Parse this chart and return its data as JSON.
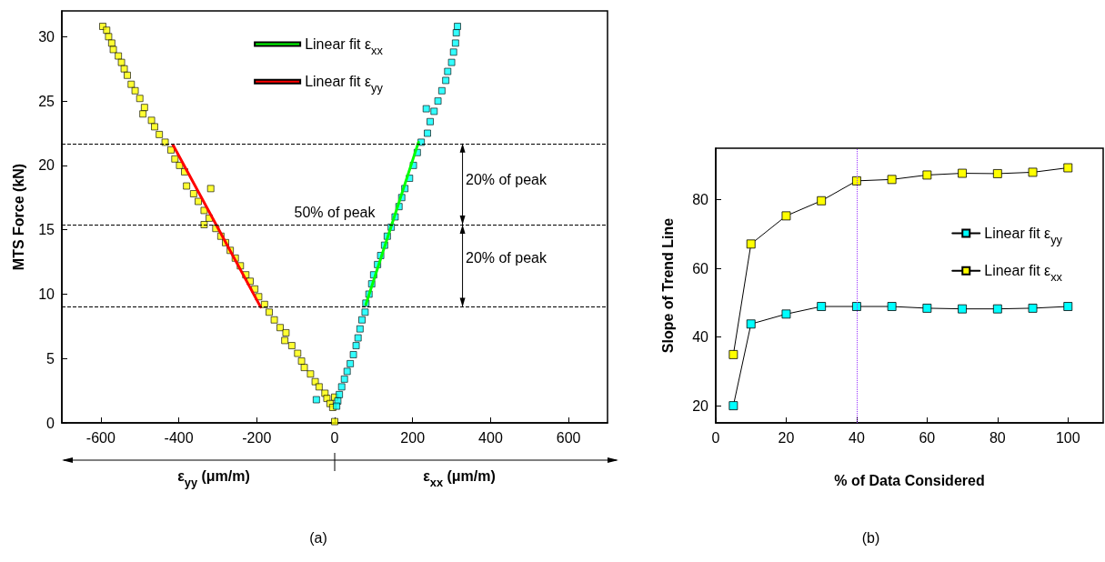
{
  "chart_data": [
    {
      "type": "scatter",
      "title": "(a)",
      "xlabel": "ε$_{yy}$ (μm/m)",
      "ylabel": "MTS Force (kN)",
      "xlim": [
        -700,
        700
      ],
      "xticks": [
        -600,
        -400,
        -200,
        0,
        200,
        400,
        600
      ],
      "ylim": [
        0,
        32
      ],
      "yticks": [
        0,
        5,
        10,
        15,
        20,
        25,
        30
      ],
      "marker": "square",
      "grid": false,
      "legend": "top",
      "series": [
        {
          "color": "#ffff00",
          "x": [
            -595,
            -585,
            -580,
            -572,
            -568,
            -555,
            -547,
            -540,
            -532,
            -522,
            -512,
            -500,
            -488,
            -492,
            -470,
            -462,
            -450,
            -435,
            -420,
            -410,
            -398,
            -385,
            -380,
            -318,
            -362,
            -350,
            -335,
            -322,
            -335,
            -305,
            -292,
            -280,
            -268,
            -255,
            -242,
            -228,
            -217,
            -205,
            -195,
            -180,
            -168,
            -155,
            -140,
            -125,
            -128,
            -110,
            -95,
            -85,
            -78,
            -62,
            -50,
            -40,
            -25,
            -20,
            -12,
            -5,
            0,
            0
          ],
          "values": [
            30.8,
            30.5,
            30.0,
            29.5,
            29.0,
            28.5,
            28.0,
            27.5,
            27.0,
            26.3,
            25.8,
            25.2,
            24.5,
            24.0,
            23.5,
            23.0,
            22.4,
            21.8,
            21.2,
            20.5,
            20.0,
            19.5,
            18.4,
            18.2,
            17.8,
            17.2,
            16.5,
            15.9,
            15.4,
            15.1,
            14.5,
            14.0,
            13.4,
            12.8,
            12.2,
            11.5,
            11.0,
            10.4,
            9.8,
            9.2,
            8.6,
            8.0,
            7.4,
            7.0,
            6.4,
            6.0,
            5.4,
            4.8,
            4.3,
            3.8,
            3.2,
            2.8,
            2.3,
            1.9,
            1.5,
            1.2,
            2.0,
            0.1
          ]
        },
        {
          "color": "#00ffff",
          "x": [
            315,
            312,
            310,
            305,
            300,
            290,
            285,
            275,
            265,
            255,
            245,
            235,
            238,
            222,
            212,
            202,
            192,
            180,
            172,
            165,
            155,
            145,
            135,
            128,
            118,
            110,
            100,
            95,
            88,
            80,
            78,
            70,
            65,
            60,
            55,
            48,
            40,
            32,
            25,
            18,
            12,
            8,
            5,
            -47
          ],
          "values": [
            30.8,
            30.3,
            29.5,
            28.8,
            28.0,
            27.3,
            26.6,
            25.8,
            25.0,
            24.2,
            23.4,
            24.4,
            22.5,
            21.8,
            21.0,
            20.0,
            19.0,
            18.2,
            17.5,
            16.8,
            16.0,
            15.2,
            14.5,
            13.8,
            13.0,
            12.3,
            11.5,
            10.8,
            10.0,
            9.3,
            8.6,
            8.0,
            7.3,
            6.6,
            6.0,
            5.3,
            4.6,
            4.0,
            3.4,
            2.8,
            2.2,
            1.7,
            1.3,
            1.8
          ]
        },
        {
          "type": "line",
          "name": "Linear fit ε$_{xx}$",
          "color": "#00ff00",
          "marker": "none",
          "x": [
            80,
            215
          ],
          "values": [
            9.2,
            21.8
          ]
        },
        {
          "type": "line",
          "name": "Linear fit ε$_{yy}$",
          "color": "#ff0000",
          "marker": "none",
          "x": [
            -415,
            -190
          ],
          "values": [
            21.6,
            9.0
          ]
        }
      ],
      "ref_lines": [
        {
          "axis": "y",
          "value": 21.7,
          "line_style": "dashed",
          "color": "#000000"
        },
        {
          "axis": "y",
          "value": 15.4,
          "line_style": "dashed",
          "color": "#000000",
          "label": "50% of peak"
        },
        {
          "axis": "y",
          "value": 9.0,
          "line_style": "dashed",
          "color": "#000000"
        }
      ],
      "annotations": [
        "ε$_{xx}$ (μm/m)",
        "20% of peak",
        "20% of peak"
      ]
    },
    {
      "type": "line",
      "title": "(b)",
      "xlabel": "% of Data Considered",
      "ylabel": "Slope of Trend Line",
      "x": [
        5,
        10,
        20,
        30,
        40,
        50,
        60,
        70,
        80,
        90,
        100
      ],
      "xlim": [
        0,
        110
      ],
      "xticks": [
        0,
        20,
        40,
        60,
        80,
        100
      ],
      "ylim": [
        15,
        95
      ],
      "yticks": [
        20,
        40,
        60,
        80
      ],
      "marker": "square",
      "grid": false,
      "legend": "right",
      "series": [
        {
          "name": "Linear fit ε$_{yy}$",
          "color": "#00ffff",
          "values": [
            20,
            43.8,
            46.7,
            48.9,
            48.9,
            48.9,
            48.4,
            48.2,
            48.2,
            48.4,
            48.9
          ]
        },
        {
          "name": "Linear fit ε$_{xx}$",
          "color": "#ffff00",
          "values": [
            34.9,
            67.1,
            75.3,
            79.7,
            85.5,
            85.9,
            87.2,
            87.7,
            87.6,
            88.0,
            89.3
          ]
        }
      ],
      "ref_lines": [
        {
          "axis": "x",
          "value": 40,
          "line_style": "dotted",
          "color": "#9933ff"
        }
      ]
    }
  ]
}
